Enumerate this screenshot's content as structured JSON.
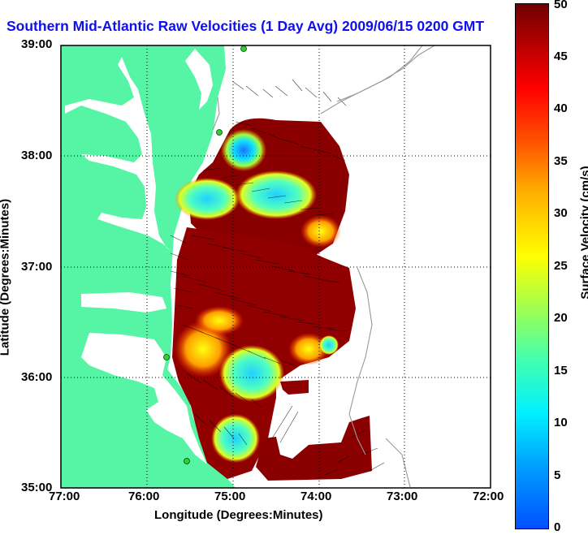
{
  "title": "Southern Mid-Atlantic Raw Velocities (1 Day Avg) 2009/06/15 0200 GMT",
  "axes": {
    "xlabel": "Longitude (Degrees:Minutes)",
    "ylabel": "Latitude (Degrees:Minutes)",
    "xticks": [
      "77:00",
      "76:00",
      "75:00",
      "74:00",
      "73:00",
      "72:00"
    ],
    "yticks": [
      "39:00",
      "38:00",
      "37:00",
      "36:00",
      "35:00"
    ]
  },
  "colorbar": {
    "label": "Surface Velocity (cm/s)",
    "ticks": [
      "0",
      "5",
      "10",
      "15",
      "20",
      "25",
      "30",
      "35",
      "40",
      "45",
      "50"
    ],
    "min": 0,
    "max": 50
  },
  "colors": {
    "land": "#55f5a5",
    "title": "#1010ee",
    "station": "#30d030"
  }
}
